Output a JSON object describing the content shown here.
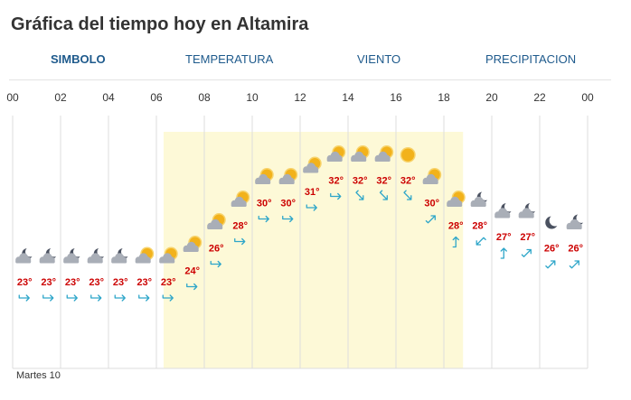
{
  "page": {
    "title": "Gráfica del tiempo hoy en Altamira"
  },
  "tabs": [
    {
      "label": "SIMBOLO",
      "active": true
    },
    {
      "label": "TEMPERATURA",
      "active": false
    },
    {
      "label": "VIENTO",
      "active": false
    },
    {
      "label": "PRECIPITACION",
      "active": false
    }
  ],
  "footer": {
    "day_label": "Martes 10"
  },
  "colors": {
    "temperature_text": "#cc0000",
    "wind_arrow": "#2ea6c9",
    "tab_text": "#1e5a8c",
    "daylight_band": "#fdf9d7",
    "grid": "#dddddd"
  },
  "chart_data": {
    "type": "table",
    "x_ticks": [
      "00",
      "02",
      "04",
      "06",
      "08",
      "10",
      "12",
      "14",
      "16",
      "18",
      "20",
      "22",
      "00"
    ],
    "hours": [
      0,
      1,
      2,
      3,
      4,
      5,
      6,
      7,
      8,
      9,
      10,
      11,
      12,
      13,
      14,
      15,
      16,
      17,
      18,
      19,
      20,
      21,
      22,
      23,
      24
    ],
    "temperatures": [
      "23°",
      "23°",
      "23°",
      "23°",
      "23°",
      "23°",
      "23°",
      "24°",
      "26°",
      "28°",
      "30°",
      "30°",
      "31°",
      "32°",
      "32°",
      "32°",
      "32°",
      "30°",
      "28°",
      "28°",
      "27°",
      "27°",
      "26°",
      "26°"
    ],
    "temperature_values": [
      23,
      23,
      23,
      23,
      23,
      23,
      23,
      24,
      26,
      28,
      30,
      30,
      31,
      32,
      32,
      32,
      32,
      30,
      28,
      28,
      27,
      27,
      26,
      26
    ],
    "symbols": [
      "moon-cloud-icon",
      "moon-cloud-icon",
      "moon-cloud-icon",
      "moon-cloud-icon",
      "moon-cloud-icon",
      "sun-cloud-icon",
      "sun-cloud-icon",
      "sun-cloud-icon",
      "sun-cloud-icon",
      "sun-cloud-icon",
      "sun-cloud-icon",
      "sun-cloud-icon",
      "sun-cloud-icon",
      "sun-cloud-icon",
      "sun-cloud-icon",
      "sun-cloud-icon",
      "sun-icon",
      "sun-cloud-icon",
      "sun-cloud-icon",
      "moon-cloud-icon",
      "moon-cloud-icon",
      "moon-cloud-icon",
      "moon-icon",
      "moon-cloud-icon"
    ],
    "wind_directions": [
      "E",
      "E",
      "E",
      "E",
      "E",
      "E",
      "E",
      "E",
      "E",
      "E",
      "E",
      "E",
      "E",
      "E",
      "SE",
      "SE",
      "SE",
      "NE",
      "N",
      "SW",
      "N",
      "NE",
      "NE",
      "NE"
    ],
    "daylight": {
      "start_hour": 6.3,
      "end_hour": 18.8
    },
    "grid": true
  }
}
